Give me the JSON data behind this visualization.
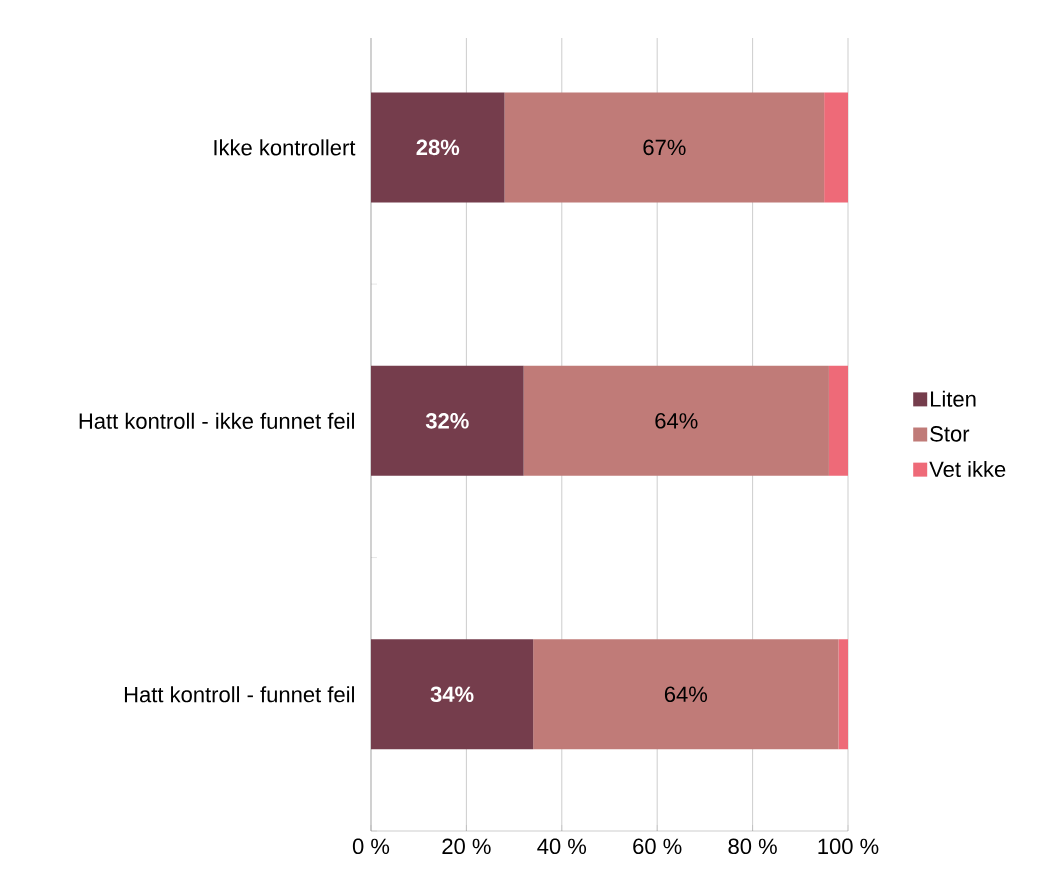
{
  "chart_data": {
    "type": "bar",
    "orientation": "horizontal",
    "stacked": true,
    "categories": [
      "Ikke kontrollert",
      "Hatt kontroll - ikke funnet feil",
      "Hatt kontroll - funnet feil"
    ],
    "series": [
      {
        "name": "Liten",
        "color": "#753d4c",
        "values": [
          28,
          32,
          34
        ],
        "value_labels": [
          "28%",
          "32%",
          "34%"
        ]
      },
      {
        "name": "Stor",
        "color": "#c07b78",
        "values": [
          67,
          64,
          64
        ],
        "value_labels": [
          "67%",
          "64%",
          "64%"
        ]
      },
      {
        "name": "Vet ikke",
        "color": "#ee6a78",
        "values": [
          5,
          4,
          2
        ]
      }
    ],
    "xlim": [
      0,
      100
    ],
    "xticks": [
      {
        "value": 0,
        "label": "0 %"
      },
      {
        "value": 20,
        "label": "20 %"
      },
      {
        "value": 40,
        "label": "40 %"
      },
      {
        "value": 60,
        "label": "60 %"
      },
      {
        "value": 80,
        "label": "80 %"
      },
      {
        "value": 100,
        "label": "100 %"
      }
    ],
    "grid": "x",
    "legend": "right"
  }
}
